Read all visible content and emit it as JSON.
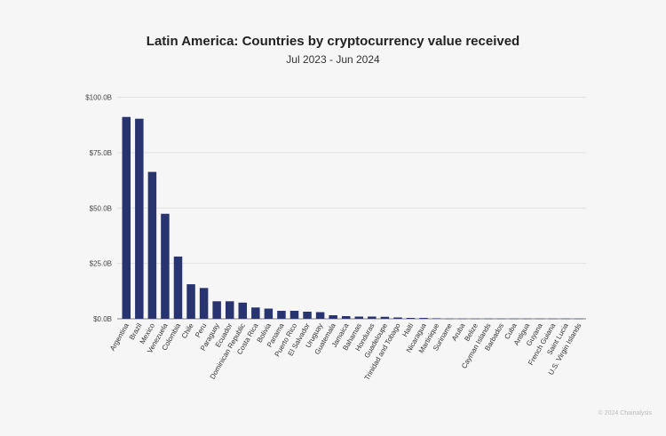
{
  "chart_data": {
    "type": "bar",
    "title": "Latin America: Countries by cryptocurrency value received",
    "subtitle": "Jul 2023 - Jun 2024",
    "xlabel": "",
    "ylabel": "",
    "ylim": [
      0,
      100
    ],
    "yticks": [
      "$0.0B",
      "$25.0B",
      "$50.0B",
      "$75.0B",
      "$100.0B"
    ],
    "grid": true,
    "bar_color": "#27346f",
    "categories": [
      "Argentina",
      "Brazil",
      "Mexico",
      "Venezuela",
      "Colombia",
      "Chile",
      "Peru",
      "Paraguay",
      "Ecuador",
      "Dominican Republic",
      "Costa Rica",
      "Bolivia",
      "Panama",
      "Puerto Rico",
      "El Salvador",
      "Uruguay",
      "Guatemala",
      "Jamaica",
      "Bahamas",
      "Honduras",
      "Guadeloupe",
      "Trinidad and Tobago",
      "Haiti",
      "Nicaragua",
      "Martinique",
      "Suriname",
      "Aruba",
      "Belize",
      "Cayman Islands",
      "Barbados",
      "Cuba",
      "Antigua",
      "Guyana",
      "French Guiana",
      "Saint Lucia",
      "U.S. Virgin Islands"
    ],
    "values": [
      91.1,
      90.3,
      66.3,
      47.4,
      28.1,
      15.6,
      13.9,
      7.9,
      7.9,
      7.3,
      5.1,
      4.6,
      3.6,
      3.6,
      3.2,
      3.0,
      1.6,
      1.2,
      1.0,
      1.0,
      0.9,
      0.6,
      0.4,
      0.4,
      0.2,
      0.05,
      0.05,
      0.05,
      0.05,
      0.05,
      0.05,
      0.05,
      0.05,
      0.05,
      0.05,
      0.05
    ]
  },
  "footer": {
    "credit": "© 2024 Chainalysis"
  }
}
